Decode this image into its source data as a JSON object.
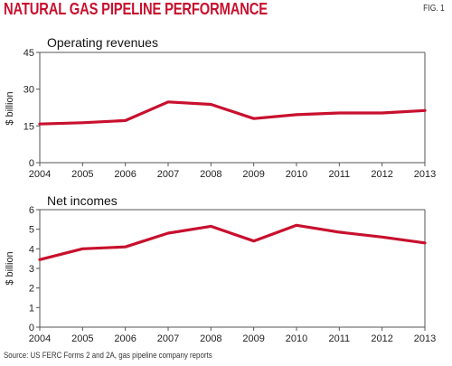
{
  "title": "NATURAL GAS PIPELINE PERFORMANCE",
  "fig_label": "FIG. 1",
  "source": "Source: US FERC Forms 2 and 2A, gas pipeline company reports",
  "colors": {
    "line": "#c8102e",
    "title": "#c8102e",
    "axis": "#555555"
  },
  "chart_data": [
    {
      "type": "line",
      "title": "Operating revenues",
      "ylabel": "$ billion",
      "x": [
        "2004",
        "2005",
        "2006",
        "2007",
        "2008",
        "2009",
        "2010",
        "2011",
        "2012",
        "2013"
      ],
      "yticks": [
        0,
        15,
        30,
        45
      ],
      "ylim": [
        0,
        45
      ],
      "grid": false,
      "values": [
        15.8,
        16.3,
        17.2,
        24.8,
        23.8,
        18.0,
        19.6,
        20.3,
        20.3,
        21.3
      ]
    },
    {
      "type": "line",
      "title": "Net incomes",
      "ylabel": "$ billion",
      "x": [
        "2004",
        "2005",
        "2006",
        "2007",
        "2008",
        "2009",
        "2010",
        "2011",
        "2012",
        "2013"
      ],
      "yticks": [
        0,
        1,
        2,
        3,
        4,
        5,
        6
      ],
      "ylim": [
        0,
        6
      ],
      "grid": false,
      "values": [
        3.45,
        4.0,
        4.1,
        4.8,
        5.15,
        4.4,
        5.2,
        4.85,
        4.6,
        4.3
      ]
    }
  ]
}
